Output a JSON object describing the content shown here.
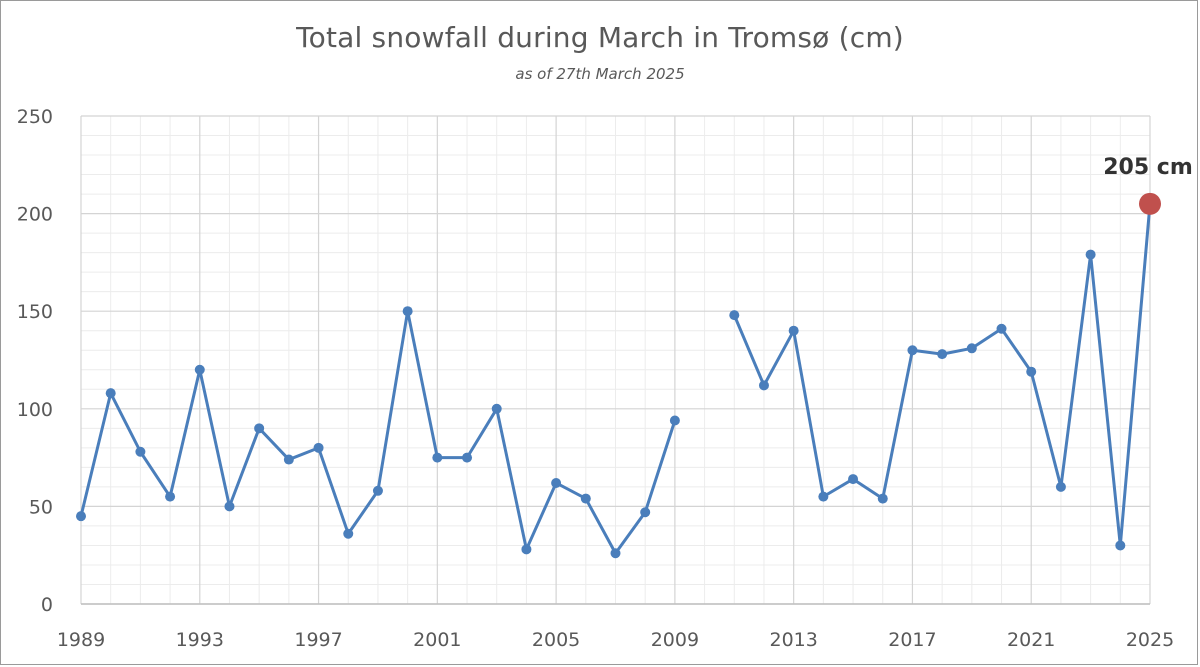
{
  "chart_data": {
    "type": "line",
    "title": "Total snowfall during March in Tromsø (cm)",
    "subtitle": "as of 27th March 2025",
    "xlabel": "",
    "ylabel": "",
    "xlim": [
      1989,
      2025
    ],
    "ylim": [
      0,
      250
    ],
    "y_ticks": [
      0,
      50,
      100,
      150,
      200,
      250
    ],
    "x_ticks": [
      1989,
      1993,
      1997,
      2001,
      2005,
      2009,
      2013,
      2017,
      2021,
      2025
    ],
    "grid": true,
    "series": [
      {
        "color": "#4a7ebb",
        "points": [
          [
            1989,
            45
          ],
          [
            1990,
            108
          ],
          [
            1991,
            78
          ],
          [
            1992,
            55
          ],
          [
            1993,
            120
          ],
          [
            1994,
            50
          ],
          [
            1995,
            90
          ],
          [
            1996,
            74
          ],
          [
            1997,
            80
          ],
          [
            1998,
            36
          ],
          [
            1999,
            58
          ],
          [
            2000,
            150
          ],
          [
            2001,
            75
          ],
          [
            2002,
            75
          ],
          [
            2003,
            100
          ],
          [
            2004,
            28
          ],
          [
            2005,
            62
          ],
          [
            2006,
            54
          ],
          [
            2007,
            26
          ],
          [
            2008,
            47
          ],
          [
            2009,
            94
          ],
          [
            2010,
            null
          ],
          [
            2011,
            148
          ],
          [
            2012,
            112
          ],
          [
            2013,
            140
          ],
          [
            2014,
            55
          ],
          [
            2015,
            64
          ],
          [
            2016,
            54
          ],
          [
            2017,
            130
          ],
          [
            2018,
            128
          ],
          [
            2019,
            131
          ],
          [
            2020,
            141
          ],
          [
            2021,
            119
          ],
          [
            2022,
            60
          ],
          [
            2023,
            179
          ],
          [
            2024,
            30
          ],
          [
            2025,
            205
          ]
        ]
      }
    ],
    "highlight": {
      "x": 2025,
      "y": 205,
      "color": "#c0504d",
      "label": "205 cm"
    }
  }
}
